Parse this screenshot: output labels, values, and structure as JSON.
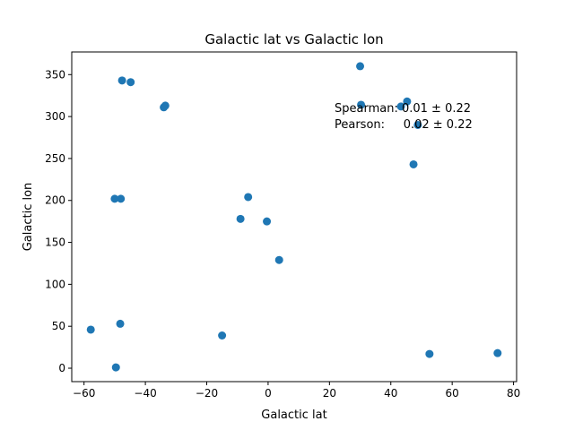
{
  "chart_data": {
    "type": "scatter",
    "title": "Galactic lat vs Galactic lon",
    "xlabel": "Galactic lat",
    "ylabel": "Galactic lon",
    "xlim": [
      -64,
      81
    ],
    "ylim": [
      -16,
      377
    ],
    "xticks": [
      -60,
      -40,
      -20,
      0,
      20,
      40,
      60,
      80
    ],
    "yticks": [
      0,
      50,
      100,
      150,
      200,
      250,
      300,
      350
    ],
    "grid": false,
    "marker_color": "#1f77b4",
    "series": [
      {
        "x": [
          -57.8,
          -49.6,
          -48.2,
          -48.0,
          -47.6,
          -44.8,
          -34.0,
          -33.5,
          -50.0,
          -9.0,
          -6.5,
          -0.4,
          3.6,
          -15.0,
          30.0,
          30.3,
          43.3,
          45.3,
          47.4,
          48.8,
          52.6,
          74.8
        ],
        "y": [
          46,
          1,
          53,
          202,
          343,
          341,
          311,
          313,
          202,
          178,
          204,
          175,
          129,
          39,
          360,
          314,
          312,
          318,
          243,
          290,
          17,
          18
        ]
      }
    ],
    "annotations": [
      "Spearman: 0.01 ± 0.22",
      "Pearson:     0.02 ± 0.22"
    ]
  }
}
